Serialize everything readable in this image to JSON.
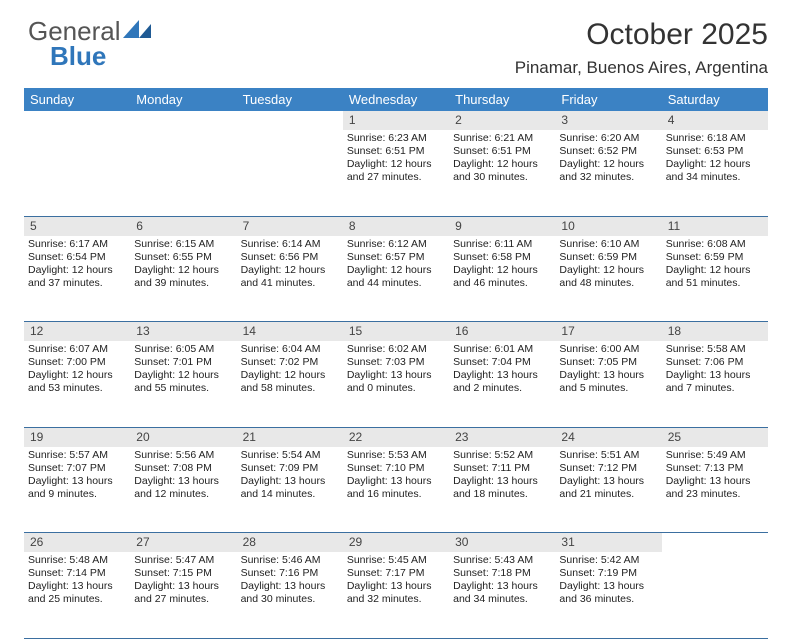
{
  "logo": {
    "general": "General",
    "blue": "Blue"
  },
  "title": "October 2025",
  "location": "Pinamar, Buenos Aires, Argentina",
  "colors": {
    "header_bg": "#3b82c4",
    "header_text": "#ffffff",
    "daynum_bg": "#e8e8e8",
    "border": "#3b6fa0",
    "logo_blue": "#2f76ba",
    "logo_gray": "#555555",
    "text": "#222222"
  },
  "typography": {
    "title_fontsize": 30,
    "location_fontsize": 17,
    "dayheader_fontsize": 13,
    "cell_fontsize": 10.5,
    "daynum_fontsize": 12
  },
  "days_of_week": [
    "Sunday",
    "Monday",
    "Tuesday",
    "Wednesday",
    "Thursday",
    "Friday",
    "Saturday"
  ],
  "weeks": [
    [
      null,
      null,
      null,
      {
        "n": "1",
        "sr": "6:23 AM",
        "ss": "6:51 PM",
        "dh": "12",
        "dm": "27"
      },
      {
        "n": "2",
        "sr": "6:21 AM",
        "ss": "6:51 PM",
        "dh": "12",
        "dm": "30"
      },
      {
        "n": "3",
        "sr": "6:20 AM",
        "ss": "6:52 PM",
        "dh": "12",
        "dm": "32"
      },
      {
        "n": "4",
        "sr": "6:18 AM",
        "ss": "6:53 PM",
        "dh": "12",
        "dm": "34"
      }
    ],
    [
      {
        "n": "5",
        "sr": "6:17 AM",
        "ss": "6:54 PM",
        "dh": "12",
        "dm": "37"
      },
      {
        "n": "6",
        "sr": "6:15 AM",
        "ss": "6:55 PM",
        "dh": "12",
        "dm": "39"
      },
      {
        "n": "7",
        "sr": "6:14 AM",
        "ss": "6:56 PM",
        "dh": "12",
        "dm": "41"
      },
      {
        "n": "8",
        "sr": "6:12 AM",
        "ss": "6:57 PM",
        "dh": "12",
        "dm": "44"
      },
      {
        "n": "9",
        "sr": "6:11 AM",
        "ss": "6:58 PM",
        "dh": "12",
        "dm": "46"
      },
      {
        "n": "10",
        "sr": "6:10 AM",
        "ss": "6:59 PM",
        "dh": "12",
        "dm": "48"
      },
      {
        "n": "11",
        "sr": "6:08 AM",
        "ss": "6:59 PM",
        "dh": "12",
        "dm": "51"
      }
    ],
    [
      {
        "n": "12",
        "sr": "6:07 AM",
        "ss": "7:00 PM",
        "dh": "12",
        "dm": "53"
      },
      {
        "n": "13",
        "sr": "6:05 AM",
        "ss": "7:01 PM",
        "dh": "12",
        "dm": "55"
      },
      {
        "n": "14",
        "sr": "6:04 AM",
        "ss": "7:02 PM",
        "dh": "12",
        "dm": "58"
      },
      {
        "n": "15",
        "sr": "6:02 AM",
        "ss": "7:03 PM",
        "dh": "13",
        "dm": "0"
      },
      {
        "n": "16",
        "sr": "6:01 AM",
        "ss": "7:04 PM",
        "dh": "13",
        "dm": "2"
      },
      {
        "n": "17",
        "sr": "6:00 AM",
        "ss": "7:05 PM",
        "dh": "13",
        "dm": "5"
      },
      {
        "n": "18",
        "sr": "5:58 AM",
        "ss": "7:06 PM",
        "dh": "13",
        "dm": "7"
      }
    ],
    [
      {
        "n": "19",
        "sr": "5:57 AM",
        "ss": "7:07 PM",
        "dh": "13",
        "dm": "9"
      },
      {
        "n": "20",
        "sr": "5:56 AM",
        "ss": "7:08 PM",
        "dh": "13",
        "dm": "12"
      },
      {
        "n": "21",
        "sr": "5:54 AM",
        "ss": "7:09 PM",
        "dh": "13",
        "dm": "14"
      },
      {
        "n": "22",
        "sr": "5:53 AM",
        "ss": "7:10 PM",
        "dh": "13",
        "dm": "16"
      },
      {
        "n": "23",
        "sr": "5:52 AM",
        "ss": "7:11 PM",
        "dh": "13",
        "dm": "18"
      },
      {
        "n": "24",
        "sr": "5:51 AM",
        "ss": "7:12 PM",
        "dh": "13",
        "dm": "21"
      },
      {
        "n": "25",
        "sr": "5:49 AM",
        "ss": "7:13 PM",
        "dh": "13",
        "dm": "23"
      }
    ],
    [
      {
        "n": "26",
        "sr": "5:48 AM",
        "ss": "7:14 PM",
        "dh": "13",
        "dm": "25"
      },
      {
        "n": "27",
        "sr": "5:47 AM",
        "ss": "7:15 PM",
        "dh": "13",
        "dm": "27"
      },
      {
        "n": "28",
        "sr": "5:46 AM",
        "ss": "7:16 PM",
        "dh": "13",
        "dm": "30"
      },
      {
        "n": "29",
        "sr": "5:45 AM",
        "ss": "7:17 PM",
        "dh": "13",
        "dm": "32"
      },
      {
        "n": "30",
        "sr": "5:43 AM",
        "ss": "7:18 PM",
        "dh": "13",
        "dm": "34"
      },
      {
        "n": "31",
        "sr": "5:42 AM",
        "ss": "7:19 PM",
        "dh": "13",
        "dm": "36"
      },
      null
    ]
  ],
  "labels": {
    "sunrise_prefix": "Sunrise: ",
    "sunset_prefix": "Sunset: ",
    "daylight_prefix": "Daylight: ",
    "hours_word": " hours",
    "and_word": "and ",
    "minutes_word": " minutes."
  }
}
